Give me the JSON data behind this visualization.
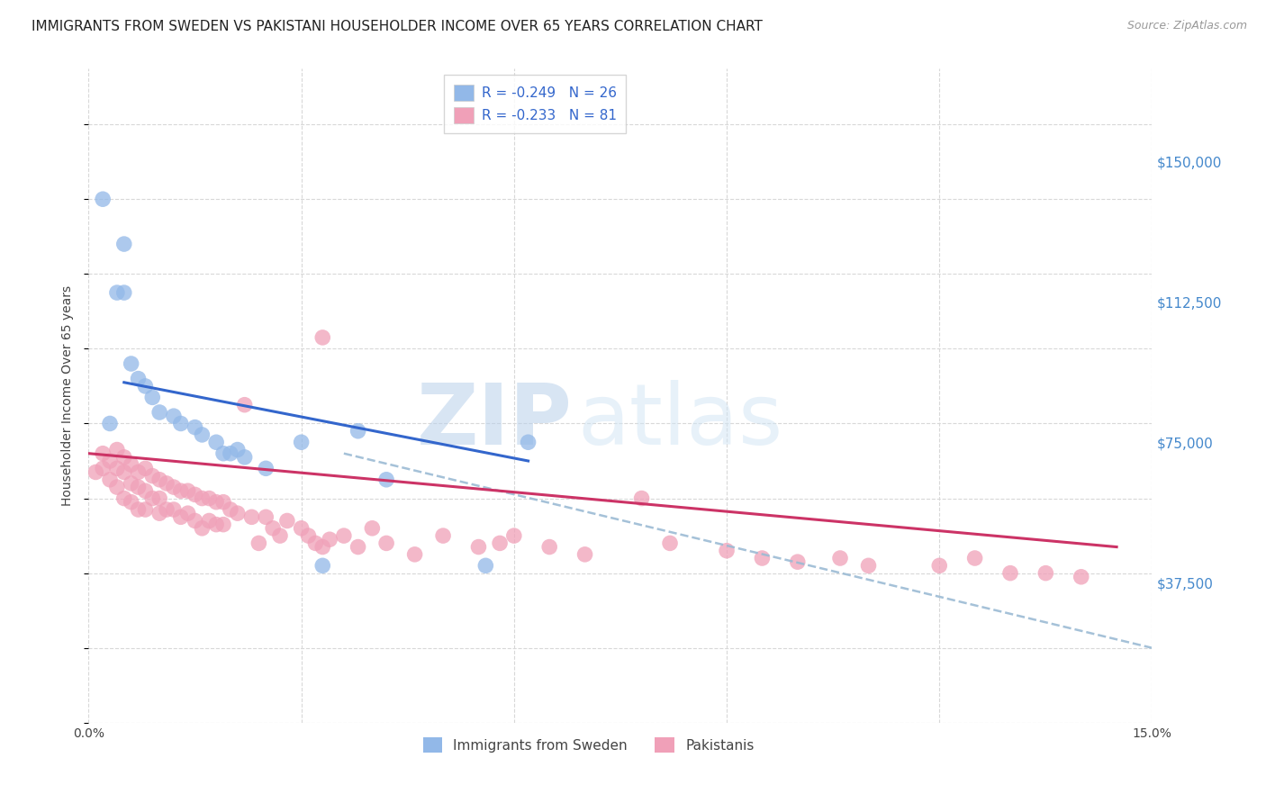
{
  "title": "IMMIGRANTS FROM SWEDEN VS PAKISTANI HOUSEHOLDER INCOME OVER 65 YEARS CORRELATION CHART",
  "source": "Source: ZipAtlas.com",
  "ylabel": "Householder Income Over 65 years",
  "xlim": [
    0,
    0.15
  ],
  "ylim": [
    0,
    175000
  ],
  "xticks": [
    0.0,
    0.03,
    0.06,
    0.09,
    0.12,
    0.15
  ],
  "xtick_labels": [
    "0.0%",
    "",
    "",
    "",
    "",
    "15.0%"
  ],
  "ytick_values": [
    37500,
    75000,
    112500,
    150000
  ],
  "ytick_labels": [
    "$37,500",
    "$75,000",
    "$112,500",
    "$150,000"
  ],
  "sweden_color": "#92b8e8",
  "pakistan_color": "#f0a0b8",
  "sweden_line_color": "#3366cc",
  "pakistan_line_color": "#cc3366",
  "dashed_line_color": "#9bbbd4",
  "sweden_R": -0.249,
  "sweden_N": 26,
  "pakistan_R": -0.233,
  "pakistan_N": 81,
  "sweden_line_x0": 0.005,
  "sweden_line_y0": 91000,
  "sweden_line_x1": 0.062,
  "sweden_line_y1": 70000,
  "pakistan_line_x0": 0.0,
  "pakistan_line_y0": 72000,
  "pakistan_line_x1": 0.145,
  "pakistan_line_y1": 47000,
  "dash_line_x0": 0.036,
  "dash_line_y0": 72000,
  "dash_line_x1": 0.15,
  "dash_line_y1": 20000,
  "sweden_pts_x": [
    0.002,
    0.003,
    0.004,
    0.005,
    0.006,
    0.007,
    0.008,
    0.009,
    0.01,
    0.012,
    0.013,
    0.015,
    0.016,
    0.018,
    0.019,
    0.02,
    0.021,
    0.022,
    0.025,
    0.03,
    0.033,
    0.038,
    0.042,
    0.056,
    0.062,
    0.005
  ],
  "sweden_pts_y": [
    140000,
    80000,
    115000,
    115000,
    96000,
    92000,
    90000,
    87000,
    83000,
    82000,
    80000,
    79000,
    77000,
    75000,
    72000,
    72000,
    73000,
    71000,
    68000,
    75000,
    42000,
    78000,
    65000,
    42000,
    75000,
    128000
  ],
  "pakistan_pts_x": [
    0.001,
    0.002,
    0.002,
    0.003,
    0.003,
    0.004,
    0.004,
    0.004,
    0.005,
    0.005,
    0.005,
    0.006,
    0.006,
    0.006,
    0.007,
    0.007,
    0.007,
    0.008,
    0.008,
    0.008,
    0.009,
    0.009,
    0.01,
    0.01,
    0.01,
    0.011,
    0.011,
    0.012,
    0.012,
    0.013,
    0.013,
    0.014,
    0.014,
    0.015,
    0.015,
    0.016,
    0.016,
    0.017,
    0.017,
    0.018,
    0.018,
    0.019,
    0.019,
    0.02,
    0.021,
    0.022,
    0.023,
    0.024,
    0.025,
    0.026,
    0.027,
    0.028,
    0.03,
    0.031,
    0.032,
    0.033,
    0.034,
    0.036,
    0.038,
    0.04,
    0.042,
    0.046,
    0.05,
    0.055,
    0.058,
    0.06,
    0.065,
    0.07,
    0.078,
    0.082,
    0.09,
    0.095,
    0.1,
    0.106,
    0.11,
    0.12,
    0.125,
    0.13,
    0.135,
    0.14,
    0.033
  ],
  "pakistan_pts_y": [
    67000,
    72000,
    68000,
    70000,
    65000,
    73000,
    68000,
    63000,
    71000,
    67000,
    60000,
    69000,
    64000,
    59000,
    67000,
    63000,
    57000,
    68000,
    62000,
    57000,
    66000,
    60000,
    65000,
    60000,
    56000,
    64000,
    57000,
    63000,
    57000,
    62000,
    55000,
    62000,
    56000,
    61000,
    54000,
    60000,
    52000,
    60000,
    54000,
    59000,
    53000,
    59000,
    53000,
    57000,
    56000,
    85000,
    55000,
    48000,
    55000,
    52000,
    50000,
    54000,
    52000,
    50000,
    48000,
    47000,
    49000,
    50000,
    47000,
    52000,
    48000,
    45000,
    50000,
    47000,
    48000,
    50000,
    47000,
    45000,
    60000,
    48000,
    46000,
    44000,
    43000,
    44000,
    42000,
    42000,
    44000,
    40000,
    40000,
    39000,
    103000
  ],
  "watermark_zip": "ZIP",
  "watermark_atlas": "atlas",
  "background_color": "#ffffff",
  "grid_color": "#d8d8d8",
  "title_fontsize": 11,
  "legend_fontsize": 11,
  "axis_fontsize": 10,
  "marker_size": 160
}
